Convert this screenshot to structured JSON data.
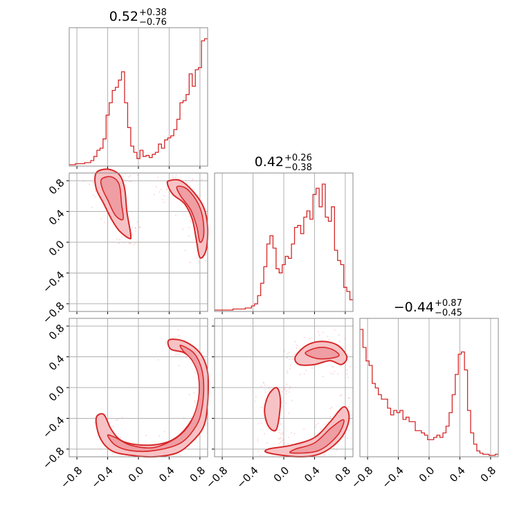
{
  "chart_data": {
    "type": "corner",
    "color": "#d62728",
    "axis_ticks": [
      "−0.8",
      "−0.4",
      "0.0",
      "0.4",
      "0.8"
    ],
    "axis_tick_values": [
      -0.8,
      -0.4,
      0.0,
      0.4,
      0.8
    ],
    "axis_range": [
      -0.9,
      0.9
    ],
    "grid": true,
    "parameters": [
      {
        "title_main": "0.52",
        "title_plus": "+0.38",
        "title_minus": "−0.76",
        "x": [
          -0.88,
          -0.84,
          -0.8,
          -0.76,
          -0.72,
          -0.68,
          -0.64,
          -0.6,
          -0.56,
          -0.52,
          -0.48,
          -0.44,
          -0.4,
          -0.36,
          -0.32,
          -0.28,
          -0.24,
          -0.2,
          -0.16,
          -0.12,
          -0.08,
          -0.04,
          0.0,
          0.04,
          0.08,
          0.12,
          0.16,
          0.2,
          0.24,
          0.28,
          0.32,
          0.36,
          0.4,
          0.44,
          0.48,
          0.52,
          0.56,
          0.6,
          0.64,
          0.68,
          0.72,
          0.76,
          0.8,
          0.84,
          0.88
        ],
        "counts": [
          0,
          0,
          1,
          1,
          1,
          2,
          2,
          4,
          8,
          14,
          16,
          25,
          48,
          60,
          72,
          75,
          82,
          90,
          60,
          36,
          18,
          12,
          6,
          14,
          8,
          9,
          7,
          10,
          12,
          20,
          16,
          24,
          26,
          28,
          34,
          44,
          60,
          62,
          68,
          88,
          76,
          92,
          94,
          120,
          122
        ]
      },
      {
        "title_main": "0.42",
        "title_plus": "+0.26",
        "title_minus": "−0.38",
        "x": [
          -0.88,
          -0.84,
          -0.8,
          -0.76,
          -0.72,
          -0.68,
          -0.64,
          -0.6,
          -0.56,
          -0.52,
          -0.48,
          -0.44,
          -0.4,
          -0.36,
          -0.32,
          -0.28,
          -0.24,
          -0.2,
          -0.16,
          -0.12,
          -0.08,
          -0.04,
          0.0,
          0.04,
          0.08,
          0.12,
          0.16,
          0.2,
          0.24,
          0.28,
          0.32,
          0.36,
          0.4,
          0.44,
          0.48,
          0.52,
          0.56,
          0.6,
          0.64,
          0.68,
          0.72,
          0.76,
          0.8,
          0.84,
          0.88
        ],
        "counts": [
          0,
          0,
          0,
          0,
          0,
          0,
          1,
          1,
          1,
          1,
          2,
          2,
          4,
          6,
          14,
          26,
          42,
          64,
          72,
          60,
          40,
          36,
          44,
          52,
          50,
          64,
          80,
          82,
          74,
          90,
          96,
          88,
          112,
          118,
          100,
          122,
          90,
          86,
          100,
          58,
          48,
          44,
          22,
          18,
          10
        ]
      },
      {
        "title_main": "−0.44",
        "title_plus": "+0.87",
        "title_minus": "−0.45",
        "x": [
          -0.88,
          -0.84,
          -0.8,
          -0.76,
          -0.72,
          -0.68,
          -0.64,
          -0.6,
          -0.56,
          -0.52,
          -0.48,
          -0.44,
          -0.4,
          -0.36,
          -0.32,
          -0.28,
          -0.24,
          -0.2,
          -0.16,
          -0.12,
          -0.08,
          -0.04,
          0.0,
          0.04,
          0.08,
          0.12,
          0.16,
          0.2,
          0.24,
          0.28,
          0.32,
          0.36,
          0.4,
          0.44,
          0.48,
          0.52,
          0.56,
          0.6,
          0.64,
          0.68,
          0.72,
          0.76,
          0.8,
          0.84,
          0.88
        ],
        "counts": [
          112,
          96,
          84,
          80,
          64,
          60,
          54,
          50,
          50,
          42,
          36,
          40,
          38,
          40,
          32,
          34,
          30,
          30,
          22,
          22,
          20,
          18,
          14,
          14,
          16,
          18,
          16,
          20,
          26,
          38,
          54,
          72,
          90,
          92,
          76,
          40,
          20,
          10,
          4,
          2,
          1,
          1,
          0,
          0,
          1
        ]
      }
    ],
    "pairs": [
      {
        "x_param": 0,
        "y_param": 1,
        "contours": [
          {
            "level": "outer",
            "points": [
              [
                -0.55,
                0.9
              ],
              [
                -0.4,
                0.95
              ],
              [
                -0.25,
                0.88
              ],
              [
                -0.18,
                0.7
              ],
              [
                -0.15,
                0.4
              ],
              [
                -0.1,
                0.1
              ],
              [
                -0.12,
                0.05
              ],
              [
                -0.25,
                0.15
              ],
              [
                -0.35,
                0.3
              ],
              [
                -0.45,
                0.5
              ],
              [
                -0.55,
                0.7
              ]
            ]
          },
          {
            "level": "inner",
            "points": [
              [
                -0.48,
                0.82
              ],
              [
                -0.35,
                0.85
              ],
              [
                -0.25,
                0.75
              ],
              [
                -0.22,
                0.5
              ],
              [
                -0.2,
                0.3
              ],
              [
                -0.3,
                0.35
              ],
              [
                -0.4,
                0.55
              ],
              [
                -0.47,
                0.7
              ]
            ]
          },
          {
            "level": "outer",
            "points": [
              [
                0.4,
                0.8
              ],
              [
                0.55,
                0.8
              ],
              [
                0.72,
                0.65
              ],
              [
                0.85,
                0.45
              ],
              [
                0.9,
                0.2
              ],
              [
                0.88,
                -0.1
              ],
              [
                0.8,
                -0.2
              ],
              [
                0.75,
                0.05
              ],
              [
                0.7,
                0.3
              ],
              [
                0.6,
                0.5
              ],
              [
                0.45,
                0.62
              ],
              [
                0.38,
                0.75
              ]
            ]
          },
          {
            "level": "inner",
            "points": [
              [
                0.5,
                0.72
              ],
              [
                0.62,
                0.7
              ],
              [
                0.75,
                0.55
              ],
              [
                0.83,
                0.35
              ],
              [
                0.85,
                0.1
              ],
              [
                0.8,
                0.0
              ],
              [
                0.76,
                0.2
              ],
              [
                0.68,
                0.42
              ],
              [
                0.55,
                0.6
              ]
            ]
          }
        ]
      },
      {
        "x_param": 0,
        "y_param": 2,
        "contours": [
          {
            "level": "outer",
            "points": [
              [
                0.4,
                0.62
              ],
              [
                0.6,
                0.6
              ],
              [
                0.8,
                0.45
              ],
              [
                0.9,
                0.2
              ],
              [
                0.9,
                -0.2
              ],
              [
                0.85,
                -0.5
              ],
              [
                0.7,
                -0.7
              ],
              [
                0.5,
                -0.85
              ],
              [
                0.2,
                -0.9
              ],
              [
                -0.1,
                -0.88
              ],
              [
                -0.35,
                -0.82
              ],
              [
                -0.5,
                -0.65
              ],
              [
                -0.55,
                -0.4
              ],
              [
                -0.45,
                -0.35
              ],
              [
                -0.35,
                -0.55
              ],
              [
                -0.2,
                -0.7
              ],
              [
                0.1,
                -0.75
              ],
              [
                0.4,
                -0.7
              ],
              [
                0.6,
                -0.55
              ],
              [
                0.75,
                -0.3
              ],
              [
                0.8,
                0.0
              ],
              [
                0.75,
                0.3
              ],
              [
                0.6,
                0.45
              ],
              [
                0.42,
                0.5
              ]
            ]
          },
          {
            "level": "inner",
            "points": [
              [
                0.55,
                0.55
              ],
              [
                0.72,
                0.45
              ],
              [
                0.82,
                0.25
              ],
              [
                0.85,
                0.0
              ],
              [
                0.82,
                -0.3
              ],
              [
                0.75,
                -0.5
              ],
              [
                0.55,
                -0.72
              ],
              [
                0.2,
                -0.82
              ],
              [
                -0.1,
                -0.82
              ],
              [
                -0.3,
                -0.75
              ],
              [
                -0.4,
                -0.62
              ],
              [
                -0.3,
                -0.65
              ],
              [
                -0.1,
                -0.75
              ],
              [
                0.2,
                -0.78
              ],
              [
                0.5,
                -0.65
              ],
              [
                0.68,
                -0.45
              ],
              [
                0.78,
                -0.15
              ],
              [
                0.78,
                0.15
              ],
              [
                0.7,
                0.35
              ],
              [
                0.58,
                0.48
              ]
            ]
          }
        ]
      },
      {
        "x_param": 1,
        "y_param": 2,
        "contours": [
          {
            "level": "outer",
            "points": [
              [
                0.15,
                0.4
              ],
              [
                0.3,
                0.55
              ],
              [
                0.5,
                0.6
              ],
              [
                0.7,
                0.55
              ],
              [
                0.82,
                0.4
              ],
              [
                0.75,
                0.3
              ],
              [
                0.6,
                0.35
              ],
              [
                0.4,
                0.3
              ],
              [
                0.2,
                0.3
              ]
            ]
          },
          {
            "level": "inner",
            "points": [
              [
                0.28,
                0.45
              ],
              [
                0.45,
                0.52
              ],
              [
                0.62,
                0.5
              ],
              [
                0.72,
                0.42
              ],
              [
                0.6,
                0.38
              ],
              [
                0.42,
                0.38
              ]
            ]
          },
          {
            "level": "outer",
            "points": [
              [
                -0.1,
                0.0
              ],
              [
                -0.2,
                -0.1
              ],
              [
                -0.25,
                -0.3
              ],
              [
                -0.2,
                -0.5
              ],
              [
                -0.1,
                -0.55
              ],
              [
                -0.05,
                -0.3
              ],
              [
                -0.05,
                -0.1
              ]
            ]
          },
          {
            "level": "outer",
            "points": [
              [
                -0.2,
                -0.85
              ],
              [
                0.2,
                -0.9
              ],
              [
                0.5,
                -0.85
              ],
              [
                0.75,
                -0.65
              ],
              [
                0.85,
                -0.4
              ],
              [
                0.78,
                -0.25
              ],
              [
                0.6,
                -0.45
              ],
              [
                0.4,
                -0.65
              ],
              [
                0.1,
                -0.75
              ],
              [
                -0.2,
                -0.8
              ]
            ]
          },
          {
            "level": "inner",
            "points": [
              [
                0.1,
                -0.85
              ],
              [
                0.45,
                -0.82
              ],
              [
                0.7,
                -0.62
              ],
              [
                0.78,
                -0.42
              ],
              [
                0.62,
                -0.52
              ],
              [
                0.4,
                -0.72
              ],
              [
                0.15,
                -0.8
              ]
            ]
          }
        ]
      }
    ]
  }
}
